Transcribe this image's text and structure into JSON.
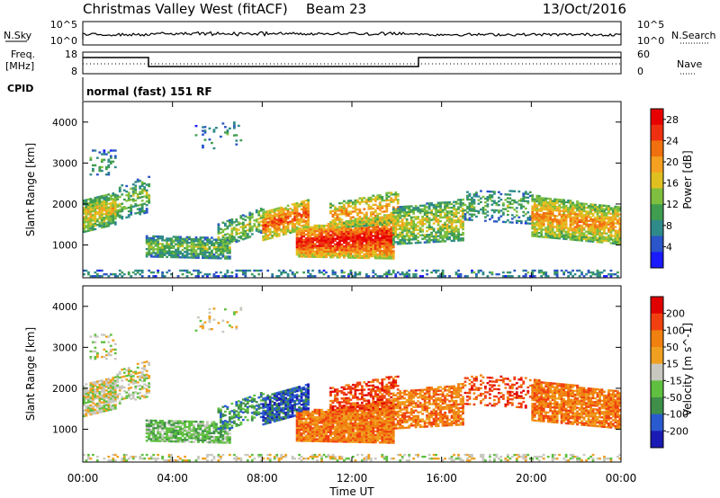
{
  "header": {
    "title": "Christmas Valley West (fitACF)",
    "beam": "Beam 23",
    "date": "13/Oct/2016"
  },
  "panels": {
    "nsky": {
      "label": "N.Sky",
      "tick_top": "10^5",
      "tick_bottom": "10^0",
      "right_tick_top": "10^5",
      "right_tick_bottom": "10^0",
      "right_label": "N.Search"
    },
    "freq": {
      "label_line1": "Freq.",
      "label_line2": "[MHz]",
      "tick_top": "18",
      "tick_bottom": "8",
      "right_tick_top": "60",
      "right_tick_bottom": "0",
      "right_label": "Nave"
    },
    "cpid": {
      "label": "CPID",
      "text": "normal (fast) 151 RF"
    }
  },
  "chart_data": [
    {
      "type": "heatmap",
      "name": "Power",
      "ylabel": "Slant Range [km]",
      "y_ticks": [
        1000,
        2000,
        3000,
        4000
      ],
      "ylim": [
        200,
        4500
      ],
      "x_ticks": [
        "00:00",
        "04:00",
        "08:00",
        "12:00",
        "16:00",
        "20:00",
        "00:00"
      ],
      "xlim_hours": [
        0,
        24
      ],
      "colorbar": {
        "label": "Power [dB]",
        "ticks": [
          4,
          8,
          12,
          16,
          20,
          24,
          28
        ],
        "range": [
          0,
          30
        ],
        "colors": [
          "#1a1aff",
          "#2b55c8",
          "#2f8a8a",
          "#3f9d50",
          "#7fbf3f",
          "#e0c020",
          "#f5a020",
          "#f07010",
          "#ee3010",
          "#e80000"
        ]
      }
    },
    {
      "type": "heatmap",
      "name": "Velocity",
      "ylabel": "Slant Range [km]",
      "y_ticks": [
        1000,
        2000,
        3000,
        4000
      ],
      "ylim": [
        200,
        4500
      ],
      "x_ticks": [
        "00:00",
        "04:00",
        "08:00",
        "12:00",
        "16:00",
        "20:00",
        "00:00"
      ],
      "xlabel": "Time UT",
      "xlim_hours": [
        0,
        24
      ],
      "colorbar": {
        "label": "Velocity [m s^-1]",
        "ticks": [
          "200",
          "100",
          "50",
          "15",
          "-15",
          "-50",
          "-100",
          "-200"
        ],
        "colors": [
          "#1a1ab4",
          "#2a5ad0",
          "#3f8f4a",
          "#5fc040",
          "#c8c8c0",
          "#f0a020",
          "#f08010",
          "#f04010",
          "#e00000"
        ]
      }
    }
  ]
}
